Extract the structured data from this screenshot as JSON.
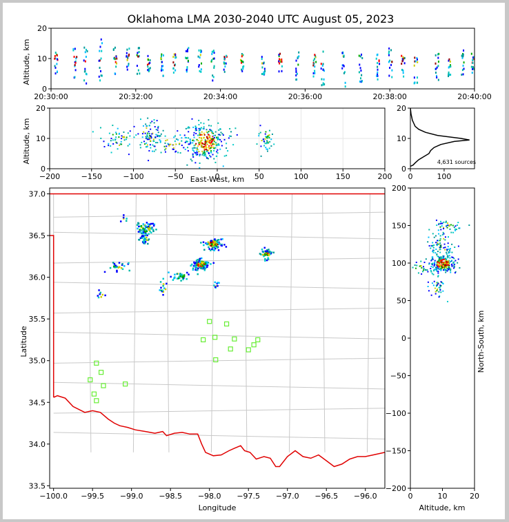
{
  "chart_data": [
    {
      "id": "time-height",
      "type": "scatter",
      "title": "Oklahoma LMA 2030-2040 UTC August 05, 2023",
      "ylabel": "Altitude, km",
      "ylim": [
        0,
        20
      ],
      "yticks": [
        "0",
        "10",
        "20"
      ],
      "xlim_minutes": [
        0,
        10
      ],
      "xticks": [
        "20:30:00",
        "20:32:00",
        "20:34:00",
        "20:36:00",
        "20:38:00",
        "20:40:00"
      ],
      "bursts": [
        {
          "t": 0.1,
          "lo": 4,
          "hi": 13
        },
        {
          "t": 0.55,
          "lo": 4,
          "hi": 14
        },
        {
          "t": 0.8,
          "lo": 2,
          "hi": 15
        },
        {
          "t": 1.15,
          "lo": 3,
          "hi": 17
        },
        {
          "t": 1.5,
          "lo": 5,
          "hi": 14
        },
        {
          "t": 1.8,
          "lo": 6,
          "hi": 14
        },
        {
          "t": 2.05,
          "lo": 5,
          "hi": 14
        },
        {
          "t": 2.3,
          "lo": 6,
          "hi": 12
        },
        {
          "t": 2.6,
          "lo": 4,
          "hi": 12
        },
        {
          "t": 2.9,
          "lo": 5,
          "hi": 12
        },
        {
          "t": 3.2,
          "lo": 6,
          "hi": 14
        },
        {
          "t": 3.5,
          "lo": 5,
          "hi": 14
        },
        {
          "t": 3.8,
          "lo": 3,
          "hi": 13
        },
        {
          "t": 4.1,
          "lo": 5,
          "hi": 12
        },
        {
          "t": 4.5,
          "lo": 6,
          "hi": 12
        },
        {
          "t": 5.0,
          "lo": 5,
          "hi": 12
        },
        {
          "t": 5.4,
          "lo": 6,
          "hi": 13
        },
        {
          "t": 5.8,
          "lo": 3,
          "hi": 13
        },
        {
          "t": 6.2,
          "lo": 4,
          "hi": 12
        },
        {
          "t": 6.4,
          "lo": 1,
          "hi": 13
        },
        {
          "t": 6.9,
          "lo": 1,
          "hi": 13
        },
        {
          "t": 7.3,
          "lo": 2,
          "hi": 12
        },
        {
          "t": 7.7,
          "lo": 3,
          "hi": 12
        },
        {
          "t": 8.0,
          "lo": 4,
          "hi": 14
        },
        {
          "t": 8.3,
          "lo": 4,
          "hi": 13
        },
        {
          "t": 8.6,
          "lo": 2,
          "hi": 13
        },
        {
          "t": 9.1,
          "lo": 3,
          "hi": 12
        },
        {
          "t": 9.4,
          "lo": 4,
          "hi": 13
        },
        {
          "t": 9.7,
          "lo": 5,
          "hi": 13
        },
        {
          "t": 9.95,
          "lo": 5,
          "hi": 12
        }
      ]
    },
    {
      "id": "east-west-altitude",
      "type": "scatter",
      "xlabel": "East-West, km",
      "ylabel": "Altitude, km",
      "xlim": [
        -200,
        200
      ],
      "ylim": [
        0,
        20
      ],
      "xticks": [
        "−200",
        "−150",
        "−100",
        "−50",
        "0",
        "50",
        "100",
        "150",
        "200"
      ],
      "yticks": [
        "0",
        "10",
        "20"
      ],
      "clusters": [
        {
          "x": -15,
          "y": 9,
          "sx": 12,
          "sy": 3,
          "n": 300
        },
        {
          "x": -82,
          "y": 11,
          "sx": 7,
          "sy": 2.5,
          "n": 90
        },
        {
          "x": -120,
          "y": 10,
          "sx": 12,
          "sy": 2,
          "n": 50
        },
        {
          "x": -55,
          "y": 8,
          "sx": 10,
          "sy": 2,
          "n": 40
        },
        {
          "x": 57,
          "y": 10,
          "sx": 4,
          "sy": 2,
          "n": 45
        }
      ]
    },
    {
      "id": "altitude-histogram",
      "type": "line",
      "ylim": [
        0,
        20
      ],
      "xlim": [
        0,
        190
      ],
      "xticks": [
        "0",
        "100"
      ],
      "yticks": [
        "0",
        "10",
        "20"
      ],
      "annotation": "4,631 sources",
      "points": [
        [
          0,
          0.8
        ],
        [
          8,
          1.2
        ],
        [
          15,
          2
        ],
        [
          25,
          3
        ],
        [
          40,
          4
        ],
        [
          55,
          5
        ],
        [
          60,
          6
        ],
        [
          70,
          7
        ],
        [
          90,
          8
        ],
        [
          130,
          9
        ],
        [
          175,
          9.5
        ],
        [
          150,
          10
        ],
        [
          80,
          11
        ],
        [
          45,
          12
        ],
        [
          25,
          13
        ],
        [
          14,
          14
        ],
        [
          10,
          15
        ],
        [
          6,
          16
        ],
        [
          4,
          17
        ],
        [
          2,
          18
        ],
        [
          1,
          19
        ],
        [
          0,
          20
        ]
      ]
    },
    {
      "id": "plan-view",
      "type": "scatter",
      "xlabel": "Longitude",
      "ylabel": "Latitude",
      "xlim": [
        -100.05,
        -95.75
      ],
      "ylim": [
        33.47,
        37.07
      ],
      "xticks": [
        [
          "−100.0",
          -100
        ],
        [
          "−99.5",
          -99.5
        ],
        [
          "−99.0",
          -99
        ],
        [
          "−98.5",
          -98.5
        ],
        [
          "−98.0",
          -98
        ],
        [
          "−97.5",
          -97.5
        ],
        [
          "−97.0",
          -97
        ],
        [
          "−96.5",
          -96.5
        ],
        [
          "−96.0",
          -96
        ]
      ],
      "yticks": [
        [
          "33.5",
          33.5
        ],
        [
          "34.0",
          34
        ],
        [
          "34.5",
          34.5
        ],
        [
          "35.0",
          35
        ],
        [
          "35.5",
          35.5
        ],
        [
          "36.0",
          36
        ],
        [
          "36.5",
          36.5
        ],
        [
          "37.0",
          37
        ]
      ],
      "clusters": [
        {
          "x": -98.12,
          "y": 36.16,
          "sx": 0.05,
          "sy": 0.03,
          "n": 120,
          "hot": true
        },
        {
          "x": -97.96,
          "y": 36.41,
          "sx": 0.06,
          "sy": 0.03,
          "n": 90,
          "hot": true
        },
        {
          "x": -98.83,
          "y": 36.59,
          "sx": 0.06,
          "sy": 0.04,
          "n": 70,
          "hot": false
        },
        {
          "x": -98.85,
          "y": 36.46,
          "sx": 0.04,
          "sy": 0.03,
          "n": 30,
          "hot": false
        },
        {
          "x": -99.2,
          "y": 36.12,
          "sx": 0.06,
          "sy": 0.03,
          "n": 25,
          "hot": false
        },
        {
          "x": -97.28,
          "y": 36.28,
          "sx": 0.04,
          "sy": 0.03,
          "n": 45,
          "hot": true
        },
        {
          "x": -98.38,
          "y": 36.02,
          "sx": 0.06,
          "sy": 0.03,
          "n": 30,
          "hot": false
        },
        {
          "x": -98.6,
          "y": 35.88,
          "sx": 0.04,
          "sy": 0.05,
          "n": 15,
          "hot": false
        },
        {
          "x": -97.93,
          "y": 35.92,
          "sx": 0.02,
          "sy": 0.02,
          "n": 10,
          "hot": false
        },
        {
          "x": -99.4,
          "y": 35.8,
          "sx": 0.03,
          "sy": 0.03,
          "n": 8,
          "hot": false
        },
        {
          "x": -99.1,
          "y": 36.72,
          "sx": 0.03,
          "sy": 0.02,
          "n": 6,
          "hot": false
        }
      ],
      "stations": [
        [
          -98.0,
          35.47
        ],
        [
          -97.78,
          35.44
        ],
        [
          -97.93,
          35.28
        ],
        [
          -98.08,
          35.25
        ],
        [
          -97.68,
          35.26
        ],
        [
          -97.38,
          35.25
        ],
        [
          -97.43,
          35.19
        ],
        [
          -97.73,
          35.14
        ],
        [
          -97.5,
          35.13
        ],
        [
          -97.92,
          35.01
        ],
        [
          -99.45,
          34.97
        ],
        [
          -99.39,
          34.86
        ],
        [
          -99.53,
          34.77
        ],
        [
          -99.36,
          34.7
        ],
        [
          -99.08,
          34.72
        ],
        [
          -99.48,
          34.6
        ],
        [
          -99.45,
          34.52
        ]
      ],
      "state_border": [
        [
          -100,
          34.56
        ],
        [
          -99.95,
          34.58
        ],
        [
          -99.85,
          34.55
        ],
        [
          -99.75,
          34.45
        ],
        [
          -99.6,
          34.38
        ],
        [
          -99.5,
          34.4
        ],
        [
          -99.4,
          34.38
        ],
        [
          -99.3,
          34.3
        ],
        [
          -99.22,
          34.25
        ],
        [
          -99.15,
          34.22
        ],
        [
          -99.05,
          34.2
        ],
        [
          -98.95,
          34.17
        ],
        [
          -98.82,
          34.15
        ],
        [
          -98.7,
          34.13
        ],
        [
          -98.6,
          34.15
        ],
        [
          -98.55,
          34.1
        ],
        [
          -98.45,
          34.13
        ],
        [
          -98.35,
          34.14
        ],
        [
          -98.25,
          34.12
        ],
        [
          -98.15,
          34.12
        ],
        [
          -98.1,
          34.0
        ],
        [
          -98.05,
          33.9
        ],
        [
          -97.95,
          33.86
        ],
        [
          -97.85,
          33.87
        ],
        [
          -97.75,
          33.92
        ],
        [
          -97.68,
          33.95
        ],
        [
          -97.6,
          33.98
        ],
        [
          -97.55,
          33.92
        ],
        [
          -97.48,
          33.9
        ],
        [
          -97.4,
          33.82
        ],
        [
          -97.3,
          33.85
        ],
        [
          -97.22,
          33.83
        ],
        [
          -97.15,
          33.73
        ],
        [
          -97.1,
          33.73
        ],
        [
          -97.0,
          33.85
        ],
        [
          -96.9,
          33.92
        ],
        [
          -96.8,
          33.85
        ],
        [
          -96.7,
          33.83
        ],
        [
          -96.6,
          33.87
        ],
        [
          -96.5,
          33.8
        ],
        [
          -96.4,
          33.73
        ],
        [
          -96.3,
          33.76
        ],
        [
          -96.2,
          33.82
        ],
        [
          -96.1,
          33.85
        ],
        [
          -96.0,
          33.85
        ],
        [
          -95.9,
          33.87
        ],
        [
          -95.8,
          33.89
        ],
        [
          -95.75,
          33.9
        ]
      ]
    },
    {
      "id": "north-south-altitude",
      "type": "scatter",
      "xlabel": "Altitude, km",
      "ylabel": "North-South, km",
      "xlim": [
        0,
        20
      ],
      "ylim": [
        -200,
        200
      ],
      "xticks": [
        "0",
        "10",
        "20"
      ],
      "yticks": [
        [
          "−200",
          -200
        ],
        [
          "−150",
          -150
        ],
        [
          "−100",
          -100
        ],
        [
          "−50",
          -50
        ],
        [
          "0",
          0
        ],
        [
          "50",
          50
        ],
        [
          "100",
          100
        ],
        [
          "150",
          150
        ],
        [
          "200",
          200
        ]
      ],
      "clusters": [
        {
          "x": 10,
          "y": 100,
          "sx": 2,
          "sy": 6,
          "n": 250
        },
        {
          "x": 9,
          "y": 125,
          "sx": 2,
          "sy": 8,
          "n": 70
        },
        {
          "x": 11,
          "y": 150,
          "sx": 2,
          "sy": 4,
          "n": 40
        },
        {
          "x": 8,
          "y": 70,
          "sx": 1.5,
          "sy": 8,
          "n": 40
        },
        {
          "x": 3,
          "y": 95,
          "sx": 1.5,
          "sy": 4,
          "n": 20
        }
      ]
    }
  ]
}
